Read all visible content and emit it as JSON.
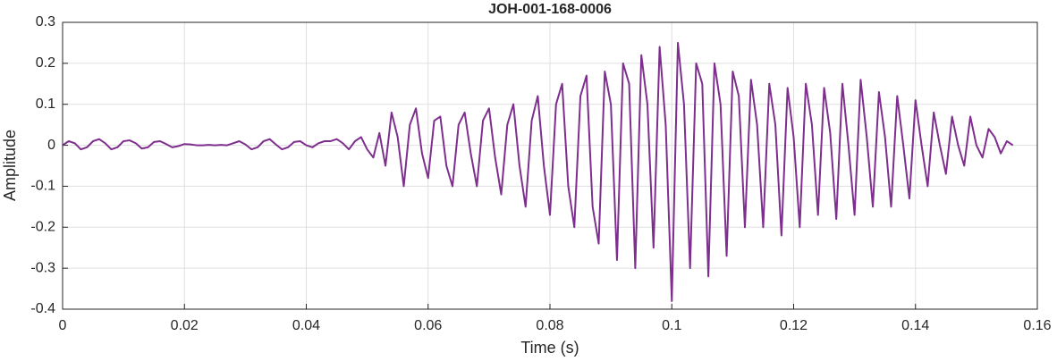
{
  "chart_data": {
    "type": "line",
    "title": "JOH-001-168-0006",
    "xlabel": "Time (s)",
    "ylabel": "Amplitude",
    "color": "#7e2f8e",
    "grid": true,
    "xlim": [
      0,
      0.16
    ],
    "ylim": [
      -0.4,
      0.3
    ],
    "xticks": [
      0,
      0.02,
      0.04,
      0.06,
      0.08,
      0.1,
      0.12,
      0.14,
      0.16
    ],
    "yticks": [
      -0.4,
      -0.3,
      -0.2,
      -0.1,
      0,
      0.1,
      0.2,
      0.3
    ],
    "x": [
      0,
      0.001,
      0.002,
      0.003,
      0.004,
      0.005,
      0.006,
      0.007,
      0.008,
      0.009,
      0.01,
      0.011,
      0.012,
      0.013,
      0.014,
      0.015,
      0.016,
      0.017,
      0.018,
      0.019,
      0.02,
      0.021,
      0.022,
      0.023,
      0.024,
      0.025,
      0.026,
      0.027,
      0.028,
      0.029,
      0.03,
      0.031,
      0.032,
      0.033,
      0.034,
      0.035,
      0.036,
      0.037,
      0.038,
      0.039,
      0.04,
      0.041,
      0.042,
      0.043,
      0.044,
      0.045,
      0.046,
      0.047,
      0.048,
      0.049,
      0.05,
      0.051,
      0.052,
      0.053,
      0.054,
      0.055,
      0.056,
      0.057,
      0.058,
      0.059,
      0.06,
      0.061,
      0.062,
      0.063,
      0.064,
      0.065,
      0.066,
      0.067,
      0.068,
      0.069,
      0.07,
      0.071,
      0.072,
      0.073,
      0.074,
      0.075,
      0.076,
      0.077,
      0.078,
      0.079,
      0.08,
      0.081,
      0.082,
      0.083,
      0.084,
      0.085,
      0.086,
      0.087,
      0.088,
      0.089,
      0.09,
      0.091,
      0.092,
      0.093,
      0.094,
      0.095,
      0.096,
      0.097,
      0.098,
      0.099,
      0.1,
      0.101,
      0.102,
      0.103,
      0.104,
      0.105,
      0.106,
      0.107,
      0.108,
      0.109,
      0.11,
      0.111,
      0.112,
      0.113,
      0.114,
      0.115,
      0.116,
      0.117,
      0.118,
      0.119,
      0.12,
      0.121,
      0.122,
      0.123,
      0.124,
      0.125,
      0.126,
      0.127,
      0.128,
      0.129,
      0.13,
      0.131,
      0.132,
      0.133,
      0.134,
      0.135,
      0.136,
      0.137,
      0.138,
      0.139,
      0.14,
      0.141,
      0.142,
      0.143,
      0.144,
      0.145,
      0.146,
      0.147,
      0.148,
      0.149,
      0.15,
      0.151,
      0.152,
      0.153,
      0.154,
      0.155,
      0.156
    ],
    "values": [
      0,
      0.01,
      0.005,
      -0.01,
      -0.005,
      0.01,
      0.015,
      0.005,
      -0.01,
      -0.005,
      0.01,
      0.012,
      0.005,
      -0.008,
      -0.005,
      0.008,
      0.01,
      0.003,
      -0.005,
      -0.002,
      0.003,
      0.002,
      0,
      0,
      0.001,
      0,
      0.001,
      0,
      0.005,
      0.01,
      0.002,
      -0.01,
      -0.005,
      0.01,
      0.015,
      0.002,
      -0.01,
      -0.005,
      0.008,
      0.01,
      0,
      -0.005,
      0.005,
      0.01,
      0.01,
      0.015,
      0.005,
      -0.01,
      0.01,
      0.02,
      -0.01,
      -0.03,
      0.03,
      -0.05,
      0.08,
      0.02,
      -0.1,
      0.05,
      0.09,
      -0.02,
      -0.08,
      0.06,
      0.07,
      -0.05,
      -0.1,
      0.05,
      0.08,
      -0.02,
      -0.1,
      0.06,
      0.09,
      -0.03,
      -0.12,
      0.05,
      0.1,
      -0.05,
      -0.15,
      0.06,
      0.12,
      -0.05,
      -0.17,
      0.1,
      0.15,
      -0.1,
      -0.2,
      0.12,
      0.17,
      -0.15,
      -0.24,
      0.18,
      0.1,
      -0.28,
      0.2,
      0.15,
      -0.3,
      0.22,
      0.1,
      -0.25,
      0.24,
      0.05,
      -0.38,
      0.25,
      0.1,
      -0.3,
      0.2,
      0.15,
      -0.32,
      0.2,
      0.1,
      -0.27,
      0.18,
      0.12,
      -0.2,
      0.16,
      0.05,
      -0.2,
      0.15,
      0.05,
      -0.22,
      0.14,
      0.02,
      -0.2,
      0.15,
      0.05,
      -0.17,
      0.14,
      0.03,
      -0.18,
      0.15,
      0,
      -0.17,
      0.16,
      0.02,
      -0.15,
      0.13,
      0.02,
      -0.15,
      0.12,
      0,
      -0.13,
      0.11,
      0,
      -0.1,
      0.08,
      0,
      -0.07,
      0.07,
      0,
      -0.05,
      0.07,
      0,
      -0.03,
      0.04,
      0.02,
      -0.02,
      0.01,
      0
    ]
  }
}
